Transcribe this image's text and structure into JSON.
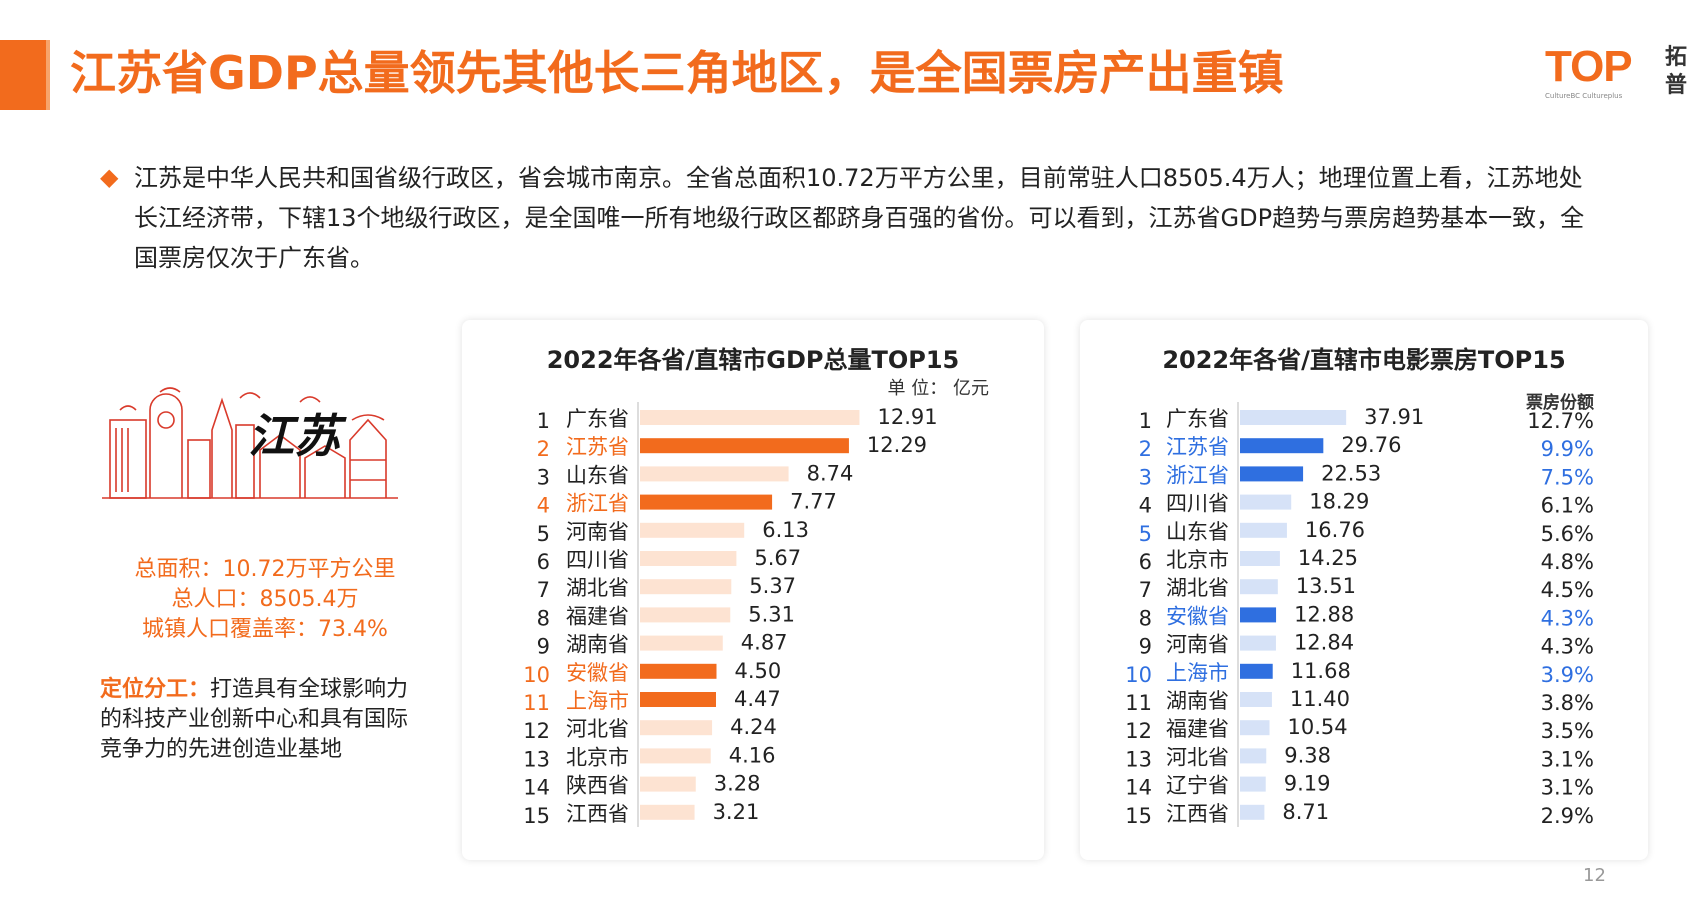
{
  "header": {
    "title": "江苏省GDP总量领先其他长三角地区，是全国票房产出重镇",
    "logo_text": "TOP",
    "logo_sub": "CultureBC Cultureplus",
    "logo_cn": "拓普"
  },
  "intro": {
    "text": "江苏是中华人民共和国省级行政区，省会城市南京。全省总面积10.72万平方公里，目前常驻人口8505.4万人；地理位置上看，江苏地处长江经济带，下辖13个地级行政区，是全国唯一所有地级行政区都跻身百强的省份。可以看到，江苏省GDP趋势与票房趋势基本一致，全国票房仅次于广东省。"
  },
  "left_panel": {
    "art_label": "江苏",
    "area": "总面积：10.72万平方公里",
    "population": "总人口：8505.4万",
    "urbanization": "城镇人口覆盖率：73.4%",
    "position_label": "定位分工：",
    "position_text": "打造具有全球影响力的科技产业创新中心和具有国际竞争力的先进创造业基地"
  },
  "colors": {
    "accent": "#f26b1d",
    "gdp_light": "#fde3d2",
    "box_highlight": "#2f6fe0",
    "box_light": "#d6e2f7",
    "box_highlight_text": "#2f6fe0"
  },
  "page_number": "12",
  "chart_data": [
    {
      "type": "bar",
      "orientation": "horizontal",
      "title": "2022年各省/直辖市GDP总量TOP15",
      "unit": "单 位： 亿元",
      "ranks": [
        "1",
        "2",
        "3",
        "4",
        "5",
        "6",
        "7",
        "8",
        "9",
        "10",
        "11",
        "12",
        "13",
        "14",
        "15"
      ],
      "categories": [
        "广东省",
        "江苏省",
        "山东省",
        "浙江省",
        "河南省",
        "四川省",
        "湖北省",
        "福建省",
        "湖南省",
        "安徽省",
        "上海市",
        "河北省",
        "北京市",
        "陕西省",
        "江西省"
      ],
      "values": [
        12.91,
        12.29,
        8.74,
        7.77,
        6.13,
        5.67,
        5.37,
        5.31,
        4.87,
        4.5,
        4.47,
        4.24,
        4.16,
        3.28,
        3.21
      ],
      "labels": [
        "12.91",
        "12.29",
        "8.74",
        "7.77",
        "6.13",
        "5.67",
        "5.37",
        "5.31",
        "4.87",
        "4.50",
        "4.47",
        "4.24",
        "4.16",
        "3.28",
        "3.21"
      ],
      "highlight": [
        false,
        true,
        false,
        true,
        false,
        false,
        false,
        false,
        false,
        true,
        true,
        false,
        false,
        false,
        false
      ],
      "xlim": [
        0,
        14
      ]
    },
    {
      "type": "bar",
      "orientation": "horizontal",
      "title": "2022年各省/直辖市电影票房TOP15",
      "share_header": "票房份额",
      "ranks": [
        "1",
        "2",
        "3",
        "4",
        "5",
        "6",
        "7",
        "8",
        "9",
        "10",
        "11",
        "12",
        "13",
        "14",
        "15"
      ],
      "categories": [
        "广东省",
        "江苏省",
        "浙江省",
        "四川省",
        "山东省",
        "北京市",
        "湖北省",
        "安徽省",
        "河南省",
        "上海市",
        "湖南省",
        "福建省",
        "河北省",
        "辽宁省",
        "江西省"
      ],
      "values": [
        37.91,
        29.76,
        22.53,
        18.29,
        16.76,
        14.25,
        13.51,
        12.88,
        12.84,
        11.68,
        11.4,
        10.54,
        9.38,
        9.19,
        8.71
      ],
      "labels": [
        "37.91",
        "29.76",
        "22.53",
        "18.29",
        "16.76",
        "14.25",
        "13.51",
        "12.88",
        "12.84",
        "11.68",
        "11.40",
        "10.54",
        "9.38",
        "9.19",
        "8.71"
      ],
      "shares": [
        "12.7%",
        "9.9%",
        "7.5%",
        "6.1%",
        "5.6%",
        "4.8%",
        "4.5%",
        "4.3%",
        "4.3%",
        "3.9%",
        "3.8%",
        "3.5%",
        "3.1%",
        "3.1%",
        "2.9%"
      ],
      "highlight": [
        false,
        true,
        true,
        false,
        false,
        false,
        false,
        true,
        false,
        true,
        false,
        false,
        false,
        false,
        false
      ],
      "rank_highlight": [
        false,
        true,
        true,
        false,
        true,
        false,
        false,
        false,
        false,
        true,
        false,
        false,
        false,
        false,
        false
      ],
      "xlim": [
        0,
        40
      ]
    }
  ]
}
